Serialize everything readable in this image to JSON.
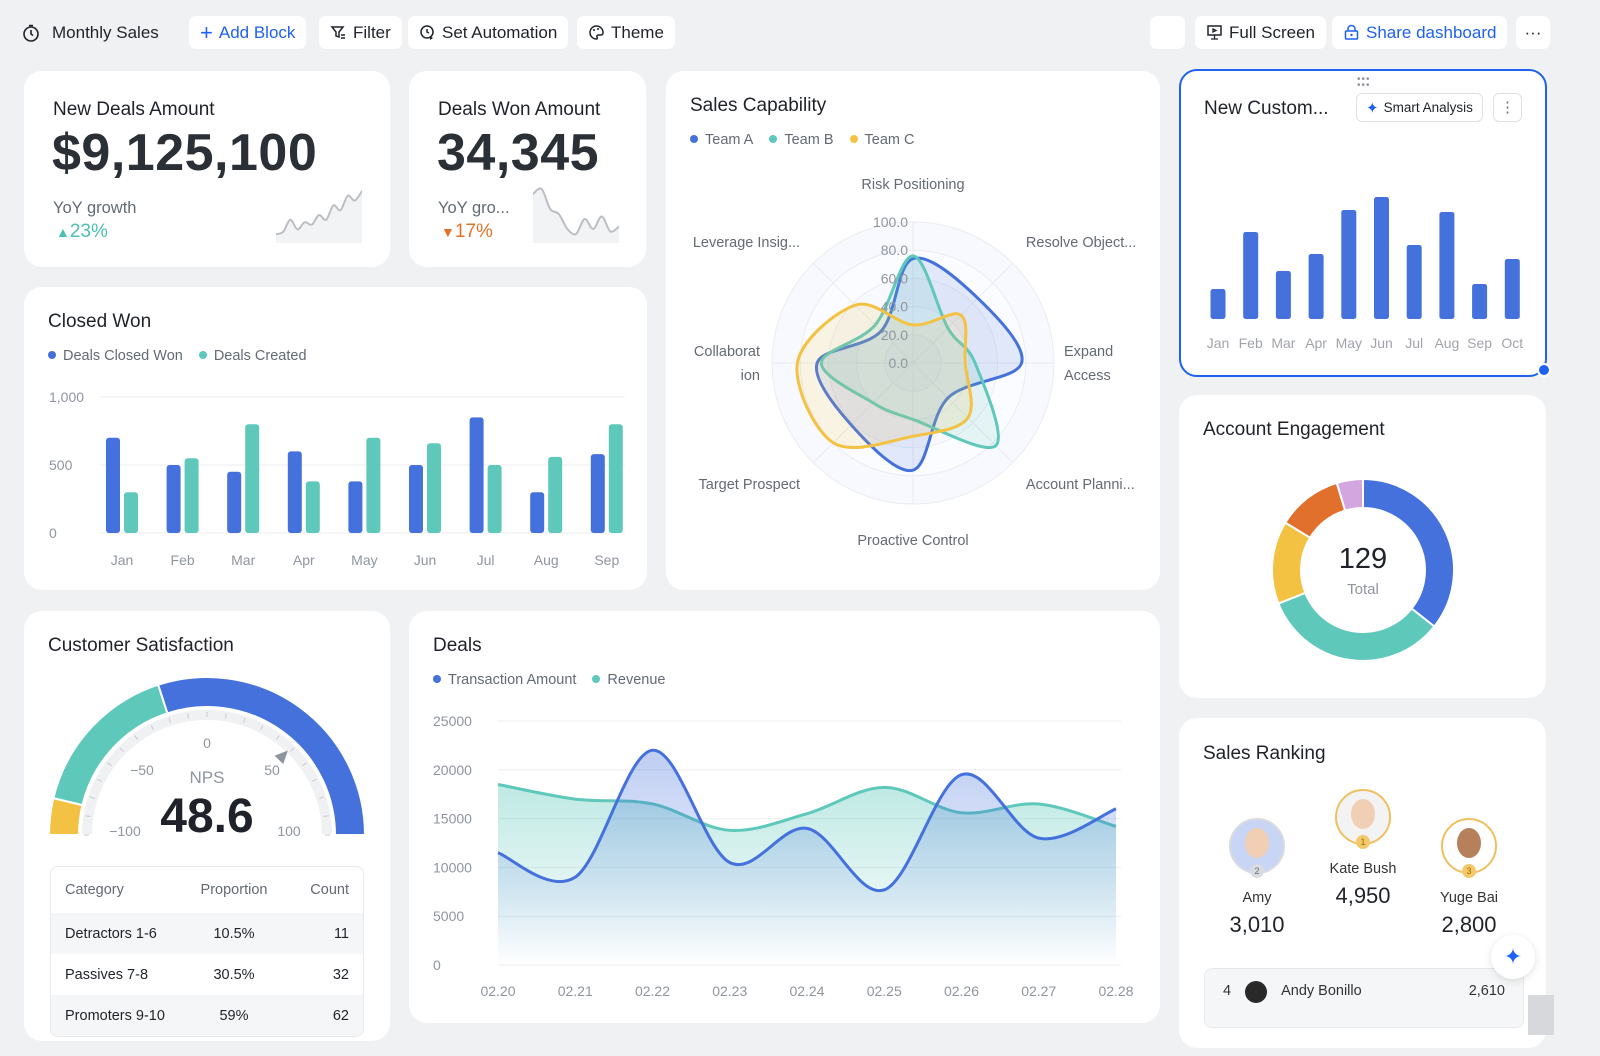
{
  "toolbar": {
    "title": "Monthly Sales",
    "add_block": "Add Block",
    "filter": "Filter",
    "set_automation": "Set Automation",
    "theme": "Theme",
    "full_screen": "Full Screen",
    "share": "Share dashboard",
    "more": "···"
  },
  "colors": {
    "blue": "#4471db",
    "teal": "#5ec8bb",
    "yellow": "#f4c242",
    "orange": "#e0702c",
    "purple": "#d3a6e0",
    "up": "#4cc0b0",
    "down": "#e2742a",
    "accent": "#1f61f0"
  },
  "kpi1": {
    "label": "New Deals Amount",
    "value": "$9,125,100",
    "growth_label": "YoY growth",
    "growth": "23%",
    "direction": "up",
    "sparkline": [
      2,
      3,
      8,
      4,
      7,
      6,
      10,
      8,
      14,
      12,
      18,
      16,
      20
    ]
  },
  "kpi2": {
    "label": "Deals Won Amount",
    "value": "34,345",
    "growth_label": "YoY gro...",
    "growth": "17%",
    "direction": "down",
    "sparkline": [
      18,
      20,
      12,
      10,
      4,
      2,
      8,
      4,
      9,
      3,
      5
    ]
  },
  "closed_won": {
    "title": "Closed Won",
    "chart_data": {
      "type": "bar",
      "categories": [
        "Jan",
        "Feb",
        "Mar",
        "Apr",
        "May",
        "Jun",
        "Jul",
        "Aug",
        "Sep"
      ],
      "series": [
        {
          "name": "Deals Closed Won",
          "values": [
            700,
            500,
            450,
            600,
            380,
            500,
            850,
            300,
            580
          ]
        },
        {
          "name": "Deals Created",
          "values": [
            300,
            550,
            800,
            380,
            700,
            660,
            500,
            560,
            800
          ]
        }
      ],
      "yticks": [
        "0",
        "500",
        "1,000"
      ],
      "ylim": [
        0,
        1000
      ],
      "grid": true,
      "legend": "top-left"
    }
  },
  "sales_capability": {
    "title": "Sales Capability",
    "chart_data": {
      "type": "radar",
      "axes": [
        "Risk Positioning",
        "Resolve Object...",
        "Expand Access",
        "Account Planni...",
        "Proactive Control",
        "Target Prospect",
        "Collaboration",
        "Leverage Insig..."
      ],
      "axis_label_lines": [
        [
          "Risk Positioning"
        ],
        [
          "Resolve Object..."
        ],
        [
          "Expand",
          "Access"
        ],
        [
          "Account Planni..."
        ],
        [
          "Proactive Control"
        ],
        [
          "Target Prospect"
        ],
        [
          "Collaborat",
          "ion"
        ],
        [
          "Leverage Insig..."
        ]
      ],
      "rticks": [
        "0.0",
        "20.0",
        "40.0",
        "60.0",
        "80.0",
        "100.0"
      ],
      "rlim": [
        0,
        100
      ],
      "series": [
        {
          "name": "Team A",
          "values": [
            74,
            65,
            77,
            35,
            76,
            62,
            68,
            32
          ]
        },
        {
          "name": "Team B",
          "values": [
            76,
            35,
            44,
            83,
            40,
            40,
            65,
            38
          ]
        },
        {
          "name": "Team C",
          "values": [
            27,
            48,
            37,
            55,
            52,
            80,
            82,
            58
          ]
        }
      ],
      "legend": "top-left"
    }
  },
  "new_customers": {
    "title": "New Custom...",
    "smart_analysis": "Smart Analysis",
    "chart_data": {
      "type": "bar",
      "categories": [
        "Jan",
        "Feb",
        "Mar",
        "Apr",
        "May",
        "Jun",
        "Jul",
        "Aug",
        "Sep",
        "Oct"
      ],
      "values": [
        30,
        87,
        48,
        65,
        109,
        122,
        74,
        107,
        35,
        60
      ]
    }
  },
  "engagement": {
    "title": "Account Engagement",
    "total": "129",
    "total_label": "Total",
    "chart_data": {
      "type": "pie",
      "values": [
        46,
        43,
        19,
        15,
        6
      ]
    }
  },
  "satisfaction": {
    "title": "Customer Satisfaction",
    "nps_label": "NPS",
    "nps_value": "48.6",
    "gauge": {
      "min": -100,
      "max": 100,
      "value": 48.6,
      "segments": [
        -85,
        -20,
        100
      ],
      "ticks": [
        "−100",
        "−50",
        "0",
        "50",
        "100"
      ]
    },
    "table": {
      "headers": [
        "Category",
        "Proportion",
        "Count"
      ],
      "rows": [
        [
          "Detractors 1-6",
          "10.5%",
          "11"
        ],
        [
          "Passives 7-8",
          "30.5%",
          "32"
        ],
        [
          "Promoters 9-10",
          "59%",
          "62"
        ]
      ]
    }
  },
  "deals": {
    "title": "Deals",
    "chart_data": {
      "type": "line",
      "x": [
        "02.20",
        "02.21",
        "02.22",
        "02.23",
        "02.24",
        "02.25",
        "02.26",
        "02.27",
        "02.28"
      ],
      "series": [
        {
          "name": "Transaction Amount",
          "values": [
            11500,
            9000,
            22000,
            10500,
            14000,
            7700,
            19500,
            13000,
            16000
          ]
        },
        {
          "name": "Revenue",
          "values": [
            18500,
            17000,
            16500,
            13800,
            15500,
            18200,
            15600,
            16500,
            14200
          ]
        }
      ],
      "yticks": [
        "0",
        "5000",
        "10000",
        "15000",
        "20000",
        "25000"
      ],
      "ylim": [
        0,
        25000
      ],
      "grid": true,
      "legend": "top-left"
    }
  },
  "ranking": {
    "title": "Sales Ranking",
    "top": [
      {
        "rank": "2",
        "name": "Amy",
        "value": "3,010"
      },
      {
        "rank": "1",
        "name": "Kate Bush",
        "value": "4,950"
      },
      {
        "rank": "3",
        "name": "Yuge Bai",
        "value": "2,800"
      }
    ],
    "list": [
      {
        "rank": "4",
        "name": "Andy Bonillo",
        "value": "2,610"
      }
    ]
  }
}
